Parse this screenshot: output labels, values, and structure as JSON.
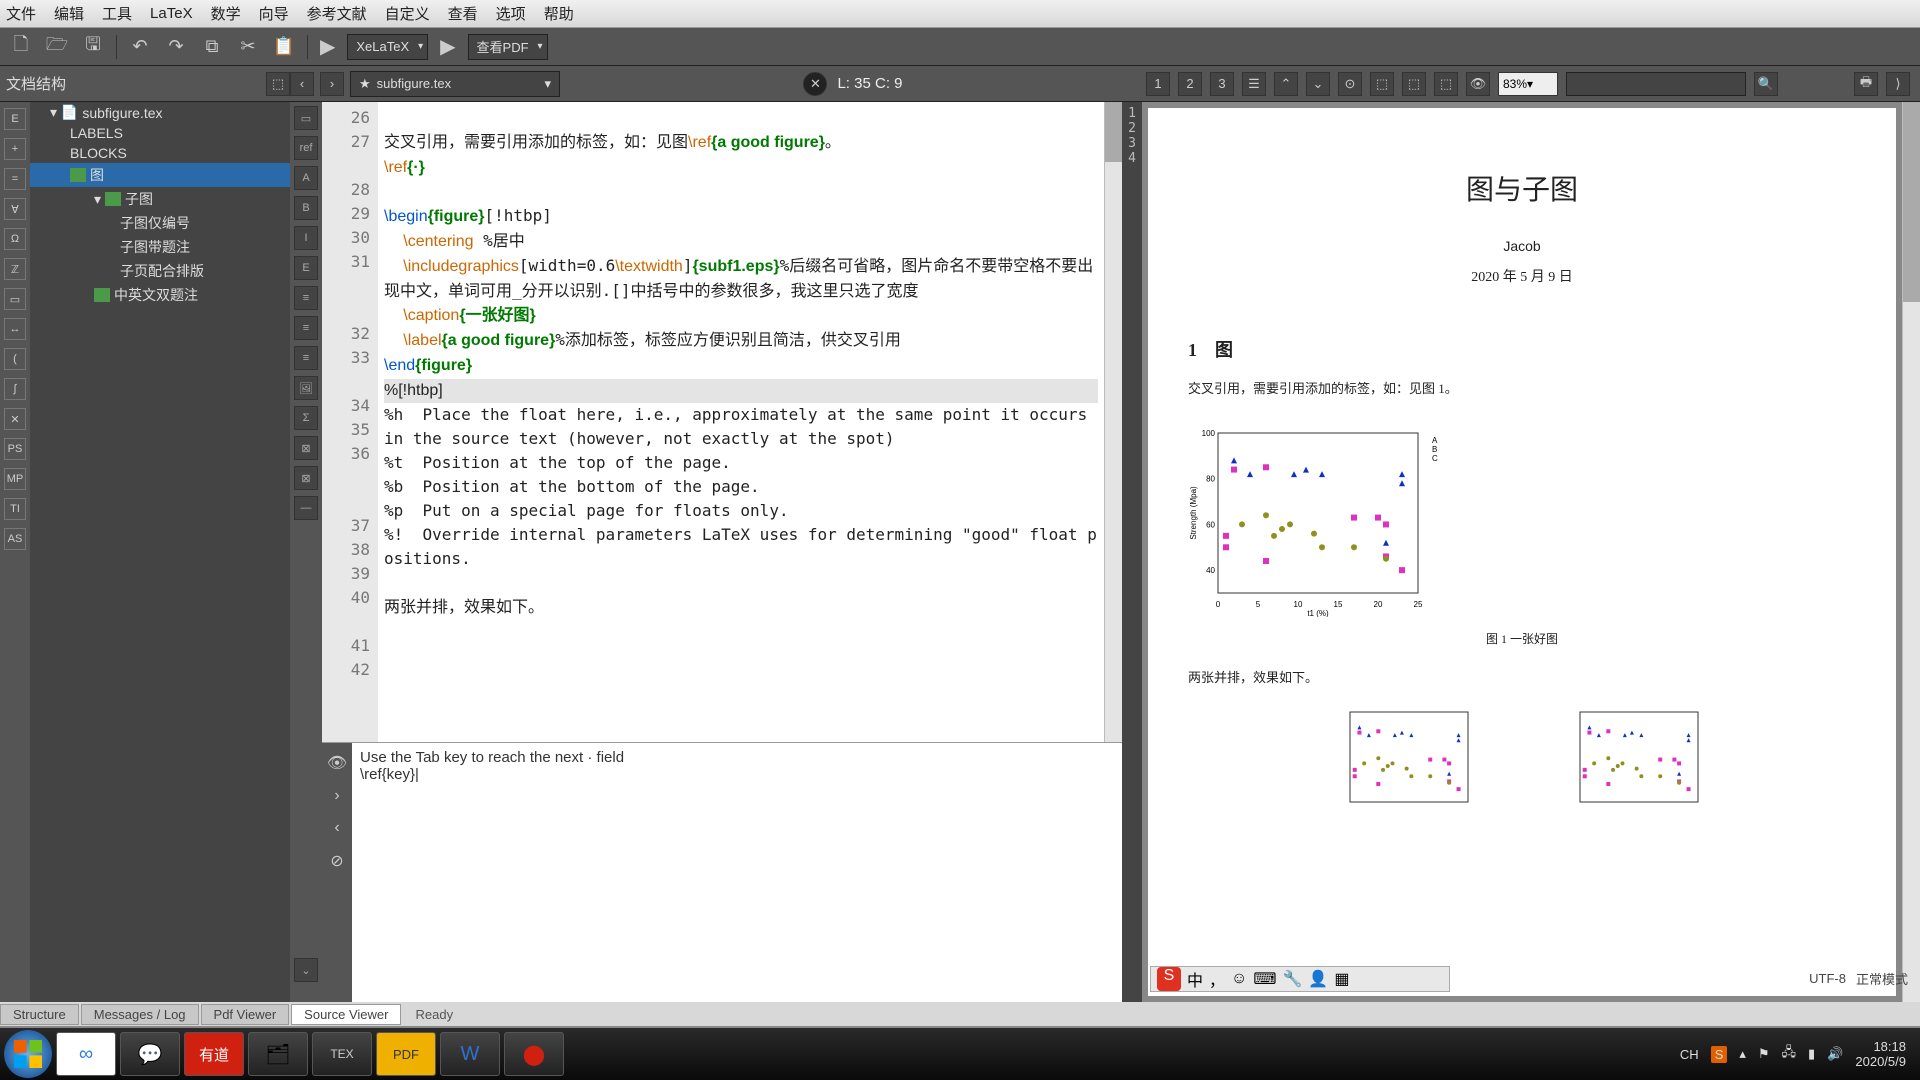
{
  "menu": [
    "文件",
    "编辑",
    "工具",
    "LaTeX",
    "数学",
    "向导",
    "参考文献",
    "自定义",
    "查看",
    "选项",
    "帮助"
  ],
  "toolbar": {
    "compiler": "XeLaTeX",
    "viewbtn": "查看PDF"
  },
  "subbar": {
    "title": "文档结构",
    "file": "subfigure.tex",
    "cursor": "L: 35 C: 9",
    "zoom": "83%"
  },
  "tree": {
    "file": "subfigure.tex",
    "labels": "LABELS",
    "blocks": "BLOCKS",
    "s1": "图",
    "s2": "子图",
    "c1": "子图仅编号",
    "c2": "子图带题注",
    "c3": "子页配合排版",
    "s3": "中英文双题注"
  },
  "lines": [
    "26",
    "27",
    "",
    "28",
    "29",
    "30",
    "31",
    "",
    "",
    "32",
    "33",
    "",
    "34",
    "35",
    "36",
    "",
    "",
    "37",
    "38",
    "39",
    "40",
    "",
    "41",
    "42"
  ],
  "helper": {
    "l1": "Use the Tab key to reach the next · field",
    "l2": "\\ref{key}|"
  },
  "pdf": {
    "title": "图与子图",
    "author": "Jacob",
    "date": "2020 年 5 月 9 日",
    "sect": "1　图",
    "para1": "交叉引用，需要引用添加的标签，如：见图 1。",
    "cap1": "图 1 一张好图",
    "para2": "两张并排，效果如下。"
  },
  "chart": {
    "xlim": [
      0,
      25
    ],
    "ylim": [
      30,
      100
    ],
    "xticks": [
      0,
      5,
      10,
      15,
      20,
      25
    ],
    "yticks": [
      40,
      60,
      80,
      100
    ],
    "xlabel": "t1 (%)",
    "ylabel": "Strength (Mpa)",
    "legend": [
      "A",
      "B",
      "C"
    ],
    "series": {
      "A": {
        "shape": "tri",
        "color": "#1030c0",
        "pts": [
          [
            2,
            88
          ],
          [
            4,
            82
          ],
          [
            9.5,
            82
          ],
          [
            11,
            84
          ],
          [
            13,
            82
          ],
          [
            23,
            82
          ],
          [
            23,
            78
          ],
          [
            21,
            52
          ]
        ]
      },
      "B": {
        "shape": "sq",
        "color": "#e030c0",
        "pts": [
          [
            1,
            55
          ],
          [
            1,
            50
          ],
          [
            2,
            84
          ],
          [
            6,
            85
          ],
          [
            6,
            44
          ],
          [
            17,
            63
          ],
          [
            20,
            63
          ],
          [
            21,
            60
          ],
          [
            21,
            46
          ],
          [
            23,
            40
          ]
        ]
      },
      "C": {
        "shape": "dot",
        "color": "#909020",
        "pts": [
          [
            3,
            60
          ],
          [
            6,
            64
          ],
          [
            7,
            55
          ],
          [
            8,
            58
          ],
          [
            9,
            60
          ],
          [
            12,
            56
          ],
          [
            13,
            50
          ],
          [
            17,
            50
          ],
          [
            21,
            45
          ]
        ]
      }
    },
    "bg": "#ffffff",
    "border": "#333333"
  },
  "tabs": {
    "t1": "Structure",
    "t2": "Messages / Log",
    "t3": "Pdf Viewer",
    "t4": "Source Viewer",
    "status": "Ready"
  },
  "status": {
    "enc": "UTF-8",
    "mode": "正常模式"
  },
  "task": {
    "lang": "CH",
    "s": "S",
    "time": "18:18",
    "date": "2020/5/9"
  }
}
